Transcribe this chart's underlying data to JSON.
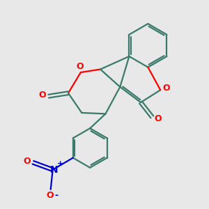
{
  "background_color": "#e8e8e8",
  "bond_color": "#3a7a6a",
  "oxygen_color": "#ff0000",
  "nitrogen_color": "#0000cc",
  "figsize": [
    3.0,
    3.0
  ],
  "dpi": 100,
  "xlim": [
    0,
    10
  ],
  "ylim": [
    0,
    10
  ]
}
